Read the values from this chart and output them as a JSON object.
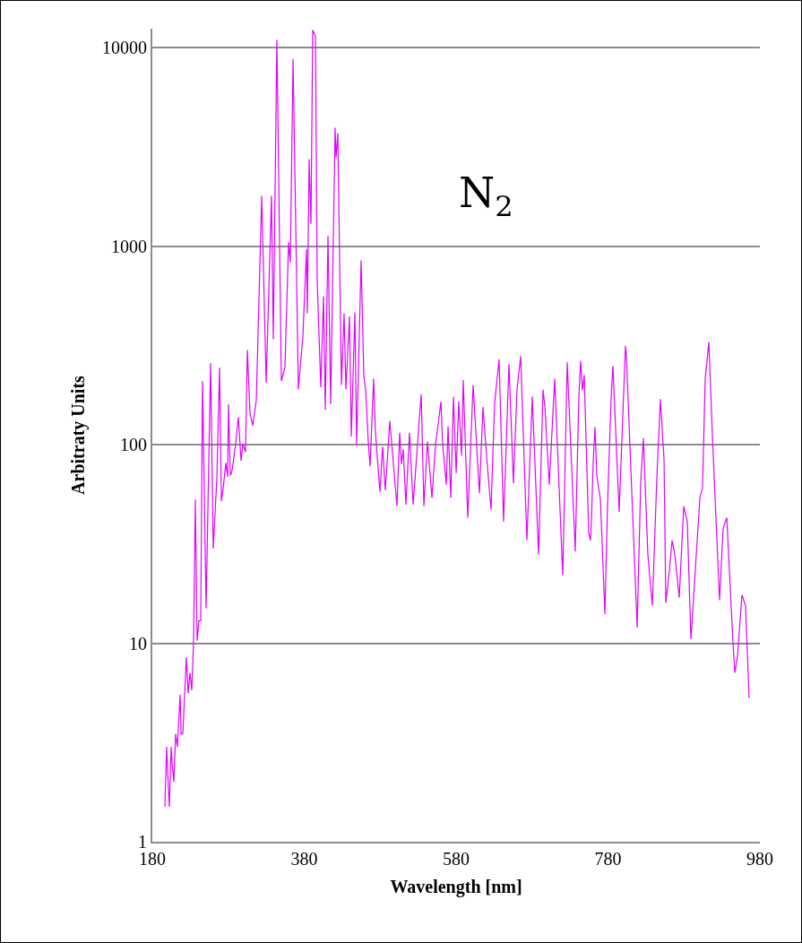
{
  "chart_data": {
    "type": "line",
    "xlabel": "Wavelength [nm]",
    "ylabel": "Arbitraty Units",
    "annotations": [
      "N$_{2}$"
    ],
    "log": "y",
    "grid": "y",
    "marker": "none",
    "line_style": "solid",
    "xlim": [
      180,
      980
    ],
    "xticks": [
      180,
      380,
      580,
      780,
      980
    ],
    "ylim": [
      1,
      12500
    ],
    "yticks": [
      1,
      10,
      100,
      1000,
      10000
    ],
    "series": [
      {
        "color": "#e100ff",
        "x": [
          196.5,
          198.9,
          200.1,
          202.4,
          204.8,
          206,
          208.3,
          210.7,
          213,
          216.6,
          217.8,
          220.1,
          222.5,
          224.8,
          227.2,
          229.6,
          231.9,
          234.3,
          236.6,
          239,
          241.4,
          243.7,
          246.1,
          250.8,
          256.7,
          260.2,
          265,
          268.5,
          270.9,
          273.2,
          276.8,
          279.1,
          280.3,
          282.7,
          285,
          289.7,
          293.3,
          296.8,
          299.2,
          302.7,
          305.1,
          308.6,
          312.2,
          316.9,
          324,
          329.9,
          336.9,
          339.3,
          344,
          349.9,
          354.6,
          359.4,
          361.7,
          365.3,
          372.3,
          378.2,
          383,
          384.1,
          386.5,
          388.9,
          391.2,
          394.8,
          397.1,
          401.8,
          405.4,
          407.7,
          411.3,
          414.8,
          420.7,
          421.9,
          424.2,
          429,
          432.5,
          434.9,
          439.6,
          442,
          446.7,
          449,
          454.9,
          458.5,
          460.8,
          464.4,
          466.7,
          471.4,
          473.8,
          479.7,
          483.2,
          486.8,
          492.7,
          502.1,
          505.7,
          508,
          510.4,
          513.9,
          518.6,
          523.4,
          534,
          537.6,
          542.3,
          548.2,
          552.9,
          556.4,
          560,
          562.3,
          567.1,
          569.4,
          573,
          576.5,
          580.1,
          583.5,
          587.1,
          589.4,
          595.3,
          602.4,
          607.1,
          610.7,
          615.4,
          620.1,
          626,
          630.7,
          636.6,
          642.5,
          649.6,
          655.5,
          660.2,
          665,
          673.2,
          680.3,
          688.6,
          694.5,
          696.9,
          702.7,
          709.8,
          720.4,
          726.3,
          736.9,
          741.6,
          744,
          746.3,
          748.7,
          754.6,
          757,
          758.2,
          760.5,
          762.9,
          765.2,
          770,
          775.9,
          779.4,
          784.1,
          786.5,
          794.7,
          803,
          804.2,
          818.4,
          823.1,
          826.6,
          832.5,
          838.4,
          844.3,
          849,
          853.8,
          856.1,
          860.8,
          864.4,
          868,
          873.8,
          879.7,
          884.4,
          889.2,
          901,
          904.5,
          908,
          912.8,
          917.5,
          926.9,
          931.6,
          936.4,
          944.6,
          947,
          950.5,
          956.4,
          961.1,
          965.8
        ],
        "values": [
          1.5,
          3.0,
          2.3,
          1.5,
          3.0,
          2.5,
          2.0,
          3.5,
          3.0,
          5.5,
          3.5,
          3.5,
          5.5,
          8.5,
          5.6,
          7.1,
          5.8,
          10.3,
          53,
          10.3,
          13,
          13,
          210,
          15,
          258,
          30,
          68,
          245,
          52,
          60,
          81,
          69,
          160,
          70,
          74,
          101,
          138,
          83,
          101,
          92,
          300,
          145,
          125,
          168,
          1800,
          205,
          1800,
          340,
          11000,
          210,
          245,
          1050,
          830,
          8800,
          190,
          350,
          970,
          460,
          2750,
          1300,
          12300,
          11400,
          670,
          195,
          560,
          150,
          1130,
          160,
          3960,
          2800,
          3720,
          200,
          460,
          190,
          445,
          110,
          465,
          100,
          850,
          220,
          190,
          103,
          78,
          215,
          115,
          58,
          98,
          59,
          132,
          49,
          115,
          80,
          95,
          50,
          115,
          50,
          180,
          49,
          104,
          54,
          101,
          127,
          165,
          100,
          63,
          124,
          54,
          175,
          72,
          165,
          88,
          212,
          43,
          200,
          98,
          57,
          155,
          88,
          47,
          162,
          270,
          41,
          255,
          64,
          190,
          280,
          33,
          175,
          28,
          190,
          155,
          63,
          215,
          22,
          260,
          29,
          175,
          265,
          188,
          225,
          36,
          33,
          42,
          81,
          123,
          70,
          53,
          14,
          50,
          170,
          250,
          46,
          316,
          280,
          12,
          65,
          108,
          28,
          15.5,
          68,
          170,
          84,
          16,
          23,
          33,
          28,
          17,
          49,
          41,
          10.5,
          54,
          61,
          215,
          330,
          110,
          16.5,
          38,
          43,
          10,
          7.1,
          8.6,
          17.5,
          15.5,
          5.3
        ]
      }
    ]
  }
}
